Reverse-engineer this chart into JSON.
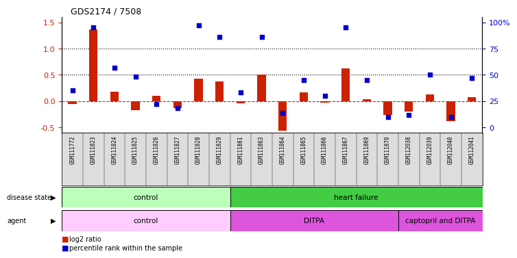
{
  "title": "GDS2174 / 7508",
  "samples": [
    "GSM111772",
    "GSM111823",
    "GSM111824",
    "GSM111825",
    "GSM111826",
    "GSM111827",
    "GSM111828",
    "GSM111829",
    "GSM111861",
    "GSM111863",
    "GSM111864",
    "GSM111865",
    "GSM111866",
    "GSM111867",
    "GSM111869",
    "GSM111870",
    "GSM112038",
    "GSM112039",
    "GSM112040",
    "GSM112041"
  ],
  "log2_ratio": [
    -0.05,
    1.37,
    0.18,
    -0.17,
    0.1,
    -0.14,
    0.42,
    0.38,
    -0.04,
    0.5,
    -0.56,
    0.17,
    -0.03,
    0.62,
    0.03,
    -0.27,
    -0.2,
    0.13,
    -0.38,
    0.08
  ],
  "percentile_rank_pct": [
    35,
    95,
    57,
    48,
    22,
    18,
    97,
    86,
    33,
    86,
    14,
    45,
    30,
    95,
    45,
    10,
    12,
    50,
    10,
    47
  ],
  "ylim_left": [
    -0.6,
    1.6
  ],
  "left_yticks": [
    -0.5,
    0.0,
    0.5,
    1.0,
    1.5
  ],
  "right_yticks": [
    0,
    25,
    50,
    75,
    100
  ],
  "right_ylabels": [
    "0",
    "25",
    "50",
    "75",
    "100%"
  ],
  "dotted_lines": [
    0.5,
    1.0
  ],
  "disease_state_groups": [
    {
      "label": "control",
      "start": 0,
      "end": 8,
      "color": "#bbffbb"
    },
    {
      "label": "heart failure",
      "start": 8,
      "end": 20,
      "color": "#44cc44"
    }
  ],
  "agent_groups": [
    {
      "label": "control",
      "start": 0,
      "end": 8,
      "color": "#ffccff"
    },
    {
      "label": "DITPA",
      "start": 8,
      "end": 16,
      "color": "#cc44cc"
    },
    {
      "label": "captopril and DITPA",
      "start": 16,
      "end": 20,
      "color": "#cc44cc"
    }
  ],
  "bar_color": "#cc2200",
  "dot_color": "#0000cc",
  "zero_line_color": "#cc2200",
  "bg_color": "#ffffff",
  "tick_color_left": "#cc2200",
  "tick_color_right": "#0000cc",
  "bar_width": 0.4,
  "dot_size": 22
}
